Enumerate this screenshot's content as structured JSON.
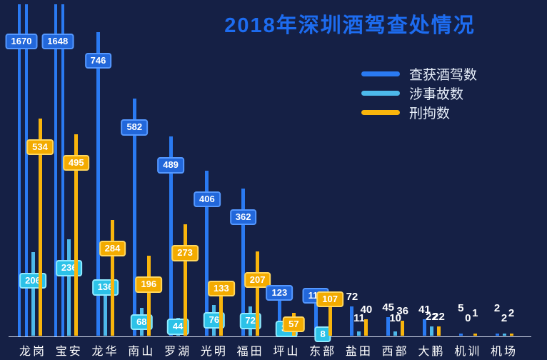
{
  "title": "2018年深圳酒驾查处情况",
  "colors": {
    "background": "#152045",
    "title_blue": "#1d6cf0",
    "legend_text": "#e6eef9",
    "axis_line": "#d9e2f2",
    "category_label": "#ffffff",
    "series_blue": "#2a7af2",
    "series_cyan": "#4db9ea",
    "series_yellow": "#f9b50c",
    "pill_blue_bg": "#2267da",
    "pill_blue_border": "#5598ff",
    "pill_cyan_bg": "#2cc2e8",
    "pill_cyan_border": "#90eaff",
    "pill_yellow_bg": "#f3ab00",
    "pill_yellow_border": "#ffd75e"
  },
  "chart_data": {
    "type": "bar",
    "title": "2018年深圳酒驾查处情况",
    "categories": [
      "龙岗",
      "宝安",
      "龙华",
      "南山",
      "罗湖",
      "光明",
      "福田",
      "坪山",
      "东部",
      "盐田",
      "西部",
      "大鹏",
      "机训",
      "机场"
    ],
    "series": [
      {
        "name": "查获酒驾数",
        "color": "#2a7af2",
        "values": [
          1670,
          1648,
          746,
          582,
          489,
          406,
          362,
          123,
          116,
          72,
          45,
          41,
          5,
          2
        ]
      },
      {
        "name": "涉事故数",
        "color": "#4db9ea",
        "values": [
          206,
          236,
          136,
          68,
          44,
          76,
          72,
          34,
          8,
          11,
          10,
          22,
          0,
          2
        ]
      },
      {
        "name": "刑拘数",
        "color": "#f9b50c",
        "values": [
          534,
          495,
          284,
          196,
          273,
          133,
          207,
          57,
          107,
          40,
          36,
          22,
          1,
          2
        ]
      }
    ],
    "xlabel": "",
    "ylabel": "",
    "ylim": [
      0,
      815
    ],
    "clipped_values": [
      1670,
      1648
    ],
    "grid": "off",
    "y_axis_labels": "hidden",
    "value_labels": "shown",
    "legend_position": "top-right"
  }
}
